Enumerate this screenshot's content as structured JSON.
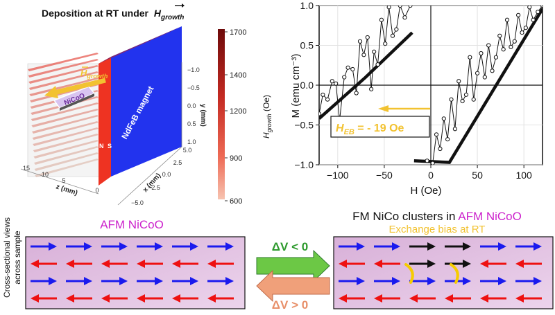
{
  "top_left": {
    "title": "Deposition at RT under",
    "title_field": "H",
    "title_field_sub": "growth",
    "magnet_label": "NdFeB magnet",
    "pole_n": "N",
    "pole_s": "S",
    "sample_label": "NiCoO",
    "field_label": "H",
    "field_label_sub": "growth",
    "z_axis_label": "z (mm)",
    "z_ticks": [
      "15",
      "10",
      "5",
      "0"
    ],
    "x_axis_label": "x (mm)",
    "x_ticks": [
      "5.0",
      "2.5",
      "0.0",
      "−2.5",
      "−5.0"
    ],
    "y_axis_label": "y (mm)",
    "y_ticks": [
      "−1.0",
      "−0.5",
      "0.0",
      "0.5",
      "1.0"
    ],
    "colorbar_label": "H",
    "colorbar_label_sub": "growth",
    "colorbar_unit": " (Oe)",
    "colorbar_ticks": [
      "1700",
      "1400",
      "1200",
      "900",
      "600"
    ],
    "colors": {
      "magnet_blue": "#2233ee",
      "magnet_red": "#ee3322",
      "field_arrow": "#f2c230",
      "cbar_top": "#6e0a0a",
      "cbar_bottom": "#f7c3b0"
    }
  },
  "chart_data": {
    "type": "line",
    "xlabel": "H (Oe)",
    "ylabel": "M (emu cm⁻³)",
    "xlim": [
      -120,
      120
    ],
    "ylim": [
      -1.0,
      1.0
    ],
    "x_ticks": [
      -100,
      -50,
      0,
      50,
      100
    ],
    "y_ticks": [
      -1.0,
      -0.5,
      0.0,
      0.5,
      1.0
    ],
    "grid": true,
    "annotation": {
      "label": "H",
      "sub": "EB",
      "value": " = - 19 Oe",
      "color": "#f2c230"
    },
    "series": [
      {
        "style": "fit",
        "x": [
          -120,
          -70,
          -20,
          -18,
          20,
          120
        ],
        "y": [
          -0.42,
          0.1,
          0.66,
          -0.95,
          -0.97,
          0.96
        ]
      },
      {
        "style": "data",
        "x": [
          -120,
          -116,
          -111,
          -106,
          -102,
          -98,
          -93,
          -89,
          -84,
          -80,
          -76,
          -72,
          -68,
          -64,
          -61,
          -57,
          -53,
          -49,
          -45,
          -41,
          -37,
          -33,
          -28,
          -22
        ],
        "y": [
          -0.36,
          -0.12,
          -0.18,
          0.05,
          0.02,
          -0.44,
          0.1,
          0.22,
          0.2,
          -0.1,
          0.55,
          0.38,
          0.6,
          -0.05,
          0.42,
          0.26,
          0.82,
          0.52,
          0.98,
          0.62,
          0.7,
          1.0,
          0.85,
          1.0
        ]
      },
      {
        "style": "data",
        "x": [
          -4,
          2,
          6,
          10,
          14,
          18,
          22,
          26,
          30,
          34,
          38,
          42,
          46,
          50,
          54,
          58,
          62,
          66,
          70,
          74,
          78,
          82,
          86,
          90,
          94,
          98,
          102,
          106,
          110,
          115,
          120
        ],
        "y": [
          -0.95,
          -0.98,
          -0.62,
          -0.8,
          -0.42,
          -0.68,
          -0.18,
          -0.55,
          0.05,
          -0.2,
          -0.12,
          0.35,
          -0.18,
          0.15,
          0.4,
          0.1,
          0.5,
          0.18,
          0.35,
          0.62,
          0.45,
          0.82,
          0.48,
          0.55,
          0.88,
          0.66,
          0.72,
          0.98,
          0.82,
          0.92,
          1.0
        ]
      }
    ]
  },
  "bottom": {
    "side_label_line1": "Cross-sectional views",
    "side_label_line2": "across sample",
    "left_title": "AFM NiCoO",
    "right_title_part1": "FM NiCo clusters in ",
    "right_title_part2": "AFM NiCoO",
    "right_subtitle": "Exchange bias at RT",
    "arrow_top_label": "ΔV < 0",
    "arrow_bottom_label": "ΔV > 0",
    "colors": {
      "panel_bg": "#e3c2e3",
      "blue_spin": "#1a1aee",
      "red_spin": "#ee1111",
      "black_spin": "#111111",
      "title_magenta": "#cc22cc",
      "subtitle_yellow": "#f2c230",
      "arrow_green": "#6cc845",
      "arrow_salmon": "#f0a07a",
      "label_green": "#2e9a2e",
      "label_salmon": "#e8906a",
      "exchange_mark": "#f6cc00"
    }
  }
}
